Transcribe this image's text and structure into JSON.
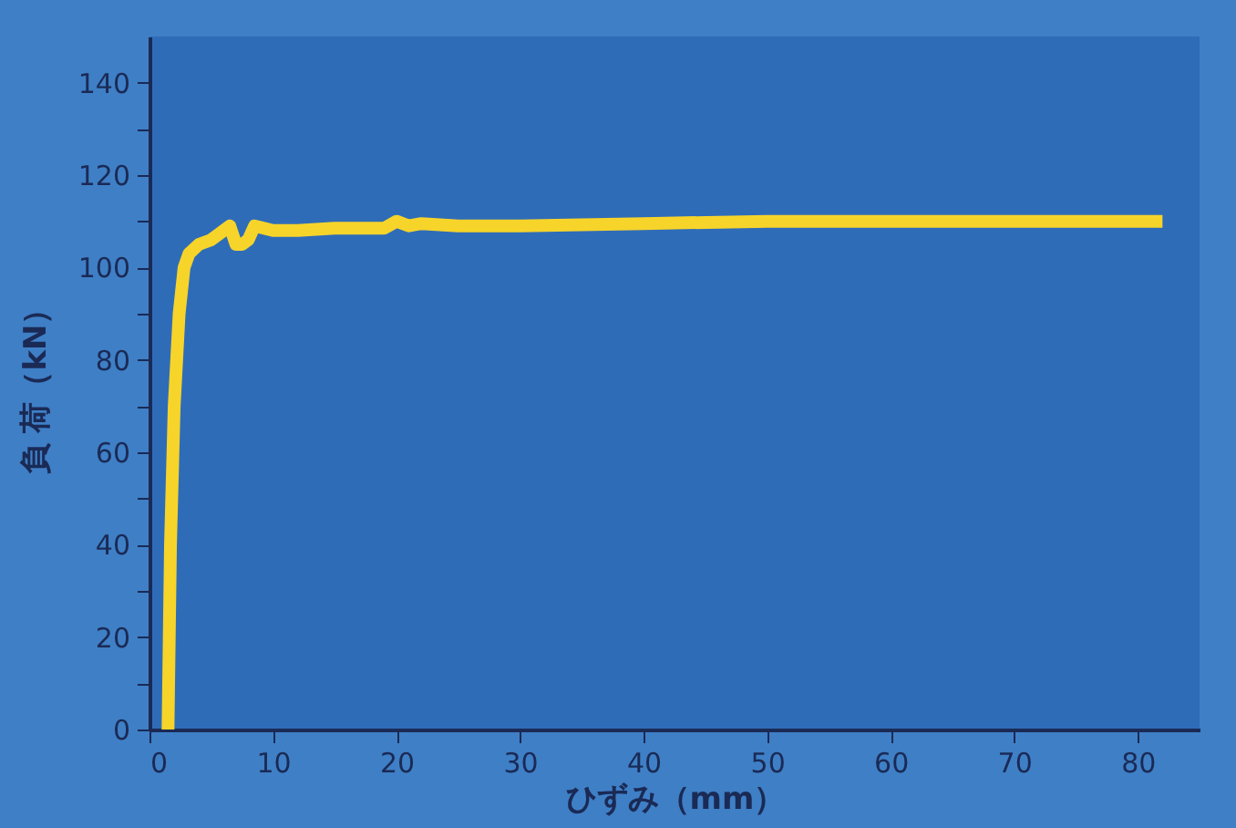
{
  "chart_data": {
    "type": "line",
    "xlabel": "ひずみ（mm）",
    "ylabel": "負 荷（kN）",
    "x": [
      1.5,
      1.7,
      2.0,
      2.4,
      2.8,
      3.2,
      4.0,
      5.0,
      6.0,
      6.5,
      7.0,
      7.5,
      8.0,
      8.5,
      10,
      12,
      15,
      17,
      19,
      20,
      21,
      22,
      25,
      30,
      40,
      50,
      60,
      70,
      82
    ],
    "series": [
      {
        "color": "#f7d42a",
        "values": [
          0,
          40,
          70,
          90,
          100,
          103,
          105,
          106,
          108,
          109,
          105,
          105,
          106,
          109,
          108,
          108,
          108.5,
          108.5,
          108.5,
          110,
          109,
          109.5,
          109,
          109,
          109.5,
          110,
          110,
          110,
          110
        ]
      }
    ],
    "xlim": [
      0,
      85
    ],
    "ylim": [
      0,
      150
    ],
    "xticks": [
      0,
      10,
      20,
      30,
      40,
      50,
      60,
      70,
      80
    ],
    "yticks": [
      0,
      {
        "value": 10,
        "label": null
      },
      20,
      {
        "value": 30,
        "label": null
      },
      40,
      {
        "value": 50,
        "label": null
      },
      60,
      {
        "value": 70,
        "label": null
      },
      80,
      {
        "value": 90,
        "label": null
      },
      100,
      {
        "value": 110,
        "label": null
      },
      120,
      {
        "value": 130,
        "label": null
      },
      140
    ],
    "grid": false,
    "marker": "none",
    "line_style": "solid"
  }
}
